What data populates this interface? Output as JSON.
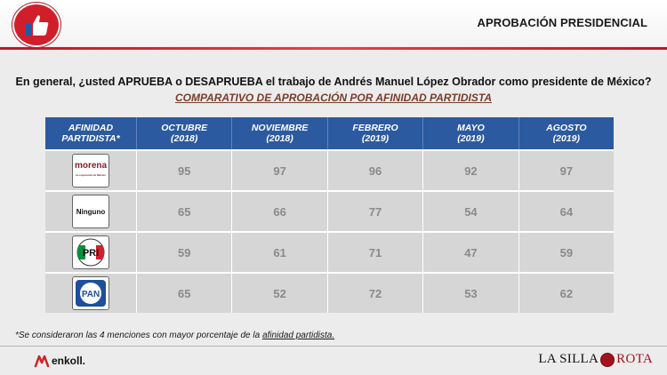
{
  "header": {
    "title": "APROBACIÓN PRESIDENCIAL",
    "logo_icon": "thumbs-up-icon",
    "accent_color": "#d01f2a"
  },
  "question": "En general, ¿usted APRUEBA o DESAPRUEBA el trabajo de Andrés Manuel López Obrador como presidente de México?",
  "subtitle": "COMPARATIVO DE APROBACIÓN POR AFINIDAD PARTIDISTA",
  "table": {
    "header_color": "#2c5aa0",
    "columns": [
      {
        "line1": "AFINIDAD",
        "line2": "PARTIDISTA*"
      },
      {
        "line1": "OCTUBRE",
        "line2": "(2018)"
      },
      {
        "line1": "NOVIEMBRE",
        "line2": "(2018)"
      },
      {
        "line1": "FEBRERO",
        "line2": "(2019)"
      },
      {
        "line1": "MAYO",
        "line2": "(2019)"
      },
      {
        "line1": "AGOSTO",
        "line2": "(2019)"
      }
    ],
    "rows": [
      {
        "party": "morena",
        "logo_text": "morena",
        "logo_sub": "La esperanza de México",
        "values": [
          "95",
          "97",
          "96",
          "92",
          "97"
        ]
      },
      {
        "party": "ninguno",
        "logo_text": "Ninguno",
        "values": [
          "65",
          "66",
          "77",
          "54",
          "64"
        ]
      },
      {
        "party": "pri",
        "logo_text": "PRI",
        "values": [
          "59",
          "61",
          "71",
          "47",
          "59"
        ]
      },
      {
        "party": "pan",
        "logo_text": "PAN",
        "values": [
          "65",
          "52",
          "72",
          "53",
          "62"
        ]
      }
    ]
  },
  "footnote": {
    "text": "*Se consideraron las 4 menciones con mayor porcentaje de la ",
    "underlined": "afinidad partidista."
  },
  "footer": {
    "left_brand": "enkoll.",
    "right_brand_1": "LA SILLA",
    "right_brand_2": "ROTA"
  }
}
